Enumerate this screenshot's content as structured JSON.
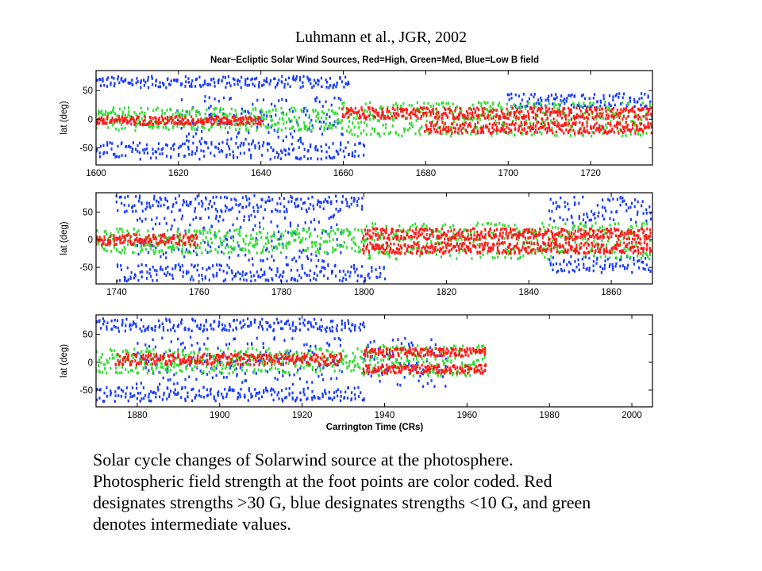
{
  "citation": "Luhmann et al., JGR, 2002",
  "caption_lines": [
    "Solar cycle changes of Solarwind source at the photosphere.",
    "Photospheric field strength at the foot points are color coded. Red",
    "designates strengths >30 G, blue designates strengths <10 G, and green",
    "denotes intermediate values."
  ],
  "colors": {
    "high": "#ff1a1a",
    "medium": "#33dd33",
    "low": "#1a3cff"
  },
  "chart_data": {
    "type": "scatter",
    "title": "Near−Ecliptic Solar Wind Sources, Red=High, Green=Med, Blue=Low B field",
    "xlabel": "Carrington Time (CRs)",
    "ylabel": "lat (deg)",
    "legend": "encoded in title",
    "grid": false,
    "series": [
      {
        "name": "Red=High"
      },
      {
        "name": "Green=Med"
      },
      {
        "name": "Blue=Low B field"
      }
    ],
    "panels": [
      {
        "xlim": [
          1600,
          1735
        ],
        "ylim": [
          -80,
          85
        ],
        "xticks": [
          1600,
          1620,
          1640,
          1660,
          1680,
          1700,
          1720
        ],
        "yticks": [
          50,
          0,
          -50
        ],
        "source_bands": [
          {
            "series": "Blue=Low B field",
            "x": [
              1600,
              1662
            ],
            "lat": [
              55,
              75
            ]
          },
          {
            "series": "Blue=Low B field",
            "x": [
              1600,
              1665
            ],
            "lat": [
              -70,
              -40
            ]
          },
          {
            "series": "Blue=Low B field",
            "x": [
              1620,
              1660
            ],
            "lat": [
              -40,
              40
            ]
          },
          {
            "series": "Red=High",
            "x": [
              1600,
              1640
            ],
            "lat": [
              -10,
              5
            ]
          },
          {
            "series": "Green=Med",
            "x": [
              1600,
              1660
            ],
            "lat": [
              -20,
              20
            ]
          },
          {
            "series": "Red=High",
            "x": [
              1660,
              1735
            ],
            "lat": [
              0,
              20
            ]
          },
          {
            "series": "Red=High",
            "x": [
              1680,
              1735
            ],
            "lat": [
              -25,
              -5
            ]
          },
          {
            "series": "Green=Med",
            "x": [
              1660,
              1735
            ],
            "lat": [
              -30,
              30
            ]
          },
          {
            "series": "Blue=Low B field",
            "x": [
              1700,
              1735
            ],
            "lat": [
              20,
              45
            ]
          }
        ]
      },
      {
        "xlim": [
          1735,
          1870
        ],
        "ylim": [
          -80,
          85
        ],
        "xticks": [
          1740,
          1760,
          1780,
          1800,
          1820,
          1840,
          1860
        ],
        "yticks": [
          50,
          0,
          -50
        ],
        "source_bands": [
          {
            "series": "Blue=Low B field",
            "x": [
              1740,
              1800
            ],
            "lat": [
              50,
              80
            ]
          },
          {
            "series": "Blue=Low B field",
            "x": [
              1740,
              1805
            ],
            "lat": [
              -75,
              -45
            ]
          },
          {
            "series": "Blue=Low B field",
            "x": [
              1745,
              1795
            ],
            "lat": [
              -40,
              45
            ]
          },
          {
            "series": "Red=High",
            "x": [
              1735,
              1760
            ],
            "lat": [
              -10,
              10
            ]
          },
          {
            "series": "Green=Med",
            "x": [
              1735,
              1800
            ],
            "lat": [
              -25,
              20
            ]
          },
          {
            "series": "Red=High",
            "x": [
              1800,
              1870
            ],
            "lat": [
              0,
              20
            ]
          },
          {
            "series": "Red=High",
            "x": [
              1800,
              1870
            ],
            "lat": [
              -25,
              -5
            ]
          },
          {
            "series": "Green=Med",
            "x": [
              1800,
              1870
            ],
            "lat": [
              -35,
              30
            ]
          },
          {
            "series": "Blue=Low B field",
            "x": [
              1845,
              1870
            ],
            "lat": [
              30,
              80
            ]
          },
          {
            "series": "Blue=Low B field",
            "x": [
              1845,
              1870
            ],
            "lat": [
              -60,
              -30
            ]
          }
        ]
      },
      {
        "xlim": [
          1870,
          2005
        ],
        "ylim": [
          -80,
          85
        ],
        "xticks": [
          1880,
          1900,
          1920,
          1940,
          1960,
          1980,
          2000
        ],
        "yticks": [
          50,
          0,
          -50
        ],
        "source_bands": [
          {
            "series": "Blue=Low B field",
            "x": [
              1870,
              1935
            ],
            "lat": [
              55,
              78
            ]
          },
          {
            "series": "Blue=Low B field",
            "x": [
              1870,
              1935
            ],
            "lat": [
              -70,
              -45
            ]
          },
          {
            "series": "Blue=Low B field",
            "x": [
              1880,
              1930
            ],
            "lat": [
              -40,
              45
            ]
          },
          {
            "series": "Red=High",
            "x": [
              1875,
              1930
            ],
            "lat": [
              -5,
              15
            ]
          },
          {
            "series": "Green=Med",
            "x": [
              1870,
              1935
            ],
            "lat": [
              -20,
              25
            ]
          },
          {
            "series": "Red=High",
            "x": [
              1935,
              1965
            ],
            "lat": [
              10,
              25
            ]
          },
          {
            "series": "Red=High",
            "x": [
              1935,
              1965
            ],
            "lat": [
              -20,
              -5
            ]
          },
          {
            "series": "Green=Med",
            "x": [
              1935,
              1965
            ],
            "lat": [
              -25,
              30
            ]
          },
          {
            "series": "Blue=Low B field",
            "x": [
              1935,
              1955
            ],
            "lat": [
              -45,
              45
            ]
          }
        ]
      }
    ]
  }
}
